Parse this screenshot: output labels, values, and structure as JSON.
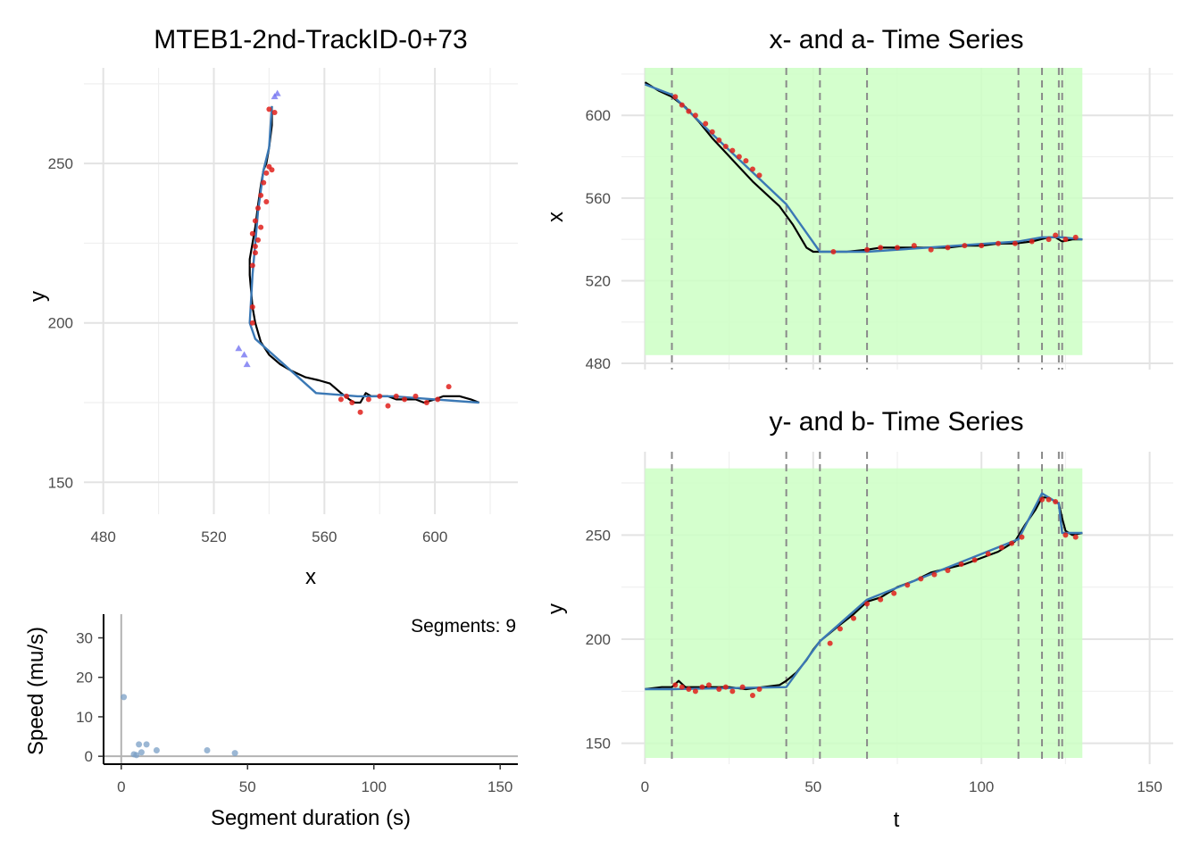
{
  "chart_data": [
    {
      "id": "xy",
      "type": "line",
      "title": "MTEB1-2nd-TrackID-0+73",
      "xlabel": "x",
      "ylabel": "y",
      "xlim": [
        473,
        630
      ],
      "ylim": [
        140,
        280
      ],
      "xticks": [
        480,
        520,
        560,
        600
      ],
      "yticks": [
        150,
        200,
        250
      ],
      "grid": true,
      "colors": {
        "track": "#000000",
        "fit": "#3a78b5",
        "points": "#e0201b",
        "triangles": "#6b6bf0"
      },
      "series": [
        {
          "kind": "line-black",
          "x": [
            616,
            613,
            609,
            606,
            603,
            600,
            596,
            593,
            590,
            586,
            583,
            580,
            577,
            575,
            573,
            571,
            569,
            566,
            562,
            558,
            553,
            548,
            544,
            540,
            537,
            535,
            534,
            533,
            533,
            534,
            535,
            536,
            537,
            538,
            539,
            540,
            541,
            541
          ],
          "y": [
            175,
            176,
            177,
            177,
            177,
            176,
            175,
            176,
            176,
            176,
            177,
            177,
            177,
            178,
            175,
            175,
            176,
            178,
            181,
            182,
            183,
            185,
            187,
            190,
            194,
            200,
            205,
            215,
            220,
            225,
            230,
            237,
            243,
            248,
            250,
            255,
            262,
            268
          ]
        },
        {
          "kind": "line-blue",
          "x": [
            616,
            600,
            585,
            572,
            557,
            535,
            533,
            534,
            536,
            538,
            540,
            541
          ],
          "y": [
            175,
            176,
            177,
            177,
            178,
            195,
            200,
            215,
            235,
            248,
            255,
            268
          ]
        },
        {
          "kind": "points-red",
          "x": [
            605,
            601,
            597,
            593,
            589,
            586,
            583,
            580,
            576,
            573,
            570,
            568,
            566,
            535,
            534,
            534,
            535,
            536,
            537,
            538,
            539,
            540,
            541,
            539,
            537,
            536,
            535,
            540,
            542,
            534,
            534
          ],
          "y": [
            180,
            176,
            175,
            177,
            176,
            177,
            174,
            177,
            176,
            172,
            175,
            177,
            176,
            222,
            218,
            228,
            232,
            236,
            240,
            244,
            247,
            249,
            248,
            238,
            230,
            226,
            224,
            267,
            266,
            200,
            205
          ]
        },
        {
          "kind": "triangles",
          "x": [
            529,
            531,
            532,
            542,
            543
          ],
          "y": [
            192,
            190,
            187,
            271,
            272
          ]
        }
      ]
    },
    {
      "id": "xt",
      "type": "line",
      "title": "x- and a- Time Series",
      "xlabel": "",
      "ylabel": "x",
      "xlim": [
        -7,
        157
      ],
      "ylim": [
        477,
        623
      ],
      "xticks": [
        0,
        50,
        100,
        150
      ],
      "yticks": [
        480,
        520,
        560,
        600
      ],
      "green_band": {
        "x": [
          0,
          130
        ],
        "y": [
          484,
          623
        ],
        "color": "#ccffc4"
      },
      "vlines": [
        8,
        42,
        52,
        66,
        111,
        118,
        123,
        124
      ],
      "series": [
        {
          "kind": "line-black",
          "t": [
            0,
            4,
            8,
            12,
            16,
            20,
            24,
            28,
            32,
            36,
            40,
            44,
            48,
            50,
            52,
            56,
            60,
            66,
            70,
            75,
            80,
            85,
            90,
            95,
            100,
            105,
            110,
            115,
            120,
            122,
            124,
            127,
            130
          ],
          "v": [
            616,
            612,
            609,
            604,
            597,
            589,
            582,
            575,
            568,
            562,
            556,
            547,
            536,
            534,
            534,
            534,
            534,
            535,
            536,
            536,
            536,
            536,
            536,
            537,
            537,
            538,
            538,
            539,
            541,
            541,
            539,
            540,
            540
          ]
        },
        {
          "kind": "line-blue",
          "t": [
            0,
            8,
            20,
            42,
            52,
            66,
            111,
            118,
            124,
            130
          ],
          "v": [
            615,
            610,
            591,
            557,
            534,
            534,
            539,
            541,
            541,
            540
          ]
        },
        {
          "kind": "points-red",
          "t": [
            9,
            11,
            13,
            15,
            18,
            20,
            22,
            24,
            26,
            28,
            30,
            32,
            34,
            56,
            66,
            70,
            75,
            80,
            85,
            90,
            95,
            100,
            105,
            110,
            115,
            120,
            122,
            125,
            128
          ],
          "v": [
            609,
            605,
            602,
            600,
            596,
            592,
            588,
            585,
            583,
            580,
            578,
            574,
            571,
            534,
            535,
            536,
            536,
            537,
            535,
            536,
            537,
            537,
            538,
            538,
            539,
            540,
            542,
            540,
            541
          ]
        }
      ]
    },
    {
      "id": "yt",
      "type": "line",
      "title": "y- and b- Time Series",
      "xlabel": "t",
      "ylabel": "y",
      "xlim": [
        -7,
        157
      ],
      "ylim": [
        140,
        290
      ],
      "xticks": [
        0,
        50,
        100,
        150
      ],
      "yticks": [
        150,
        200,
        250
      ],
      "green_band": {
        "x": [
          0,
          130
        ],
        "y": [
          143,
          282
        ],
        "color": "#ccffc4"
      },
      "vlines": [
        8,
        42,
        52,
        66,
        111,
        118,
        123,
        124
      ],
      "series": [
        {
          "kind": "line-black",
          "t": [
            0,
            5,
            8,
            10,
            12,
            15,
            18,
            20,
            25,
            30,
            35,
            40,
            42,
            45,
            48,
            50,
            52,
            55,
            58,
            62,
            66,
            70,
            75,
            80,
            85,
            90,
            95,
            100,
            105,
            110,
            113,
            116,
            118,
            120,
            122,
            123,
            124,
            125,
            127,
            130
          ],
          "v": [
            176,
            177,
            177,
            180,
            177,
            177,
            177,
            177,
            177,
            176,
            177,
            178,
            180,
            184,
            190,
            195,
            199,
            203,
            207,
            212,
            218,
            220,
            225,
            228,
            232,
            234,
            236,
            239,
            242,
            247,
            255,
            262,
            268,
            268,
            266,
            265,
            258,
            252,
            250,
            251
          ]
        },
        {
          "kind": "line-blue",
          "t": [
            0,
            8,
            42,
            52,
            66,
            111,
            118,
            123,
            124,
            130
          ],
          "v": [
            176,
            176,
            177,
            199,
            219,
            248,
            270,
            265,
            251,
            251
          ]
        },
        {
          "kind": "points-red",
          "t": [
            9,
            11,
            13,
            15,
            17,
            19,
            22,
            24,
            26,
            29,
            32,
            34,
            55,
            58,
            62,
            66,
            70,
            74,
            78,
            82,
            86,
            90,
            94,
            98,
            102,
            106,
            109,
            112,
            118,
            120,
            122,
            125,
            128
          ],
          "v": [
            178,
            177,
            176,
            175,
            177,
            178,
            176,
            177,
            175,
            177,
            173,
            176,
            198,
            205,
            210,
            217,
            219,
            222,
            226,
            229,
            231,
            233,
            236,
            238,
            241,
            244,
            246,
            249,
            267,
            267,
            266,
            250,
            249
          ]
        }
      ]
    },
    {
      "id": "speed",
      "type": "scatter",
      "title": "",
      "xlabel": "Segment duration (s)",
      "ylabel": "Speed (mu/s)",
      "xlim": [
        -7,
        157
      ],
      "ylim": [
        -2,
        36
      ],
      "xticks": [
        0,
        50,
        100,
        150
      ],
      "yticks": [
        0,
        10,
        20,
        30
      ],
      "annotation": "Segments: 9",
      "point_color": "#7a9fc6",
      "x": [
        1,
        5,
        6,
        7,
        8,
        10,
        14,
        34,
        45
      ],
      "y": [
        15,
        0.5,
        0.3,
        3,
        1,
        3,
        1.5,
        1.5,
        0.8
      ]
    }
  ]
}
